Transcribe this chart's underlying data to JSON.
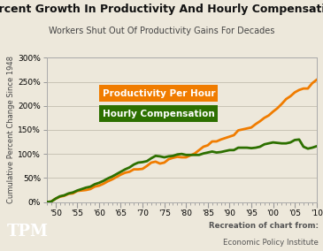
{
  "title": "Percent Growth In Productivity And Hourly Compensation",
  "subtitle": "Workers Shut Out Of Productivity Gains For Decades",
  "ylabel": "Cumulative Percent Change Since 1948",
  "background_color": "#ede8db",
  "plot_background": "#ede8db",
  "productivity_color": "#f07c00",
  "compensation_color": "#2d7000",
  "productivity_label": "Productivity Per Hour",
  "compensation_label": "Hourly Compensation",
  "tpm_bg": "#751c1c",
  "years": [
    1948,
    1949,
    1950,
    1951,
    1952,
    1953,
    1954,
    1955,
    1956,
    1957,
    1958,
    1959,
    1960,
    1961,
    1962,
    1963,
    1964,
    1965,
    1966,
    1967,
    1968,
    1969,
    1970,
    1971,
    1972,
    1973,
    1974,
    1975,
    1976,
    1977,
    1978,
    1979,
    1980,
    1981,
    1982,
    1983,
    1984,
    1985,
    1986,
    1987,
    1988,
    1989,
    1990,
    1991,
    1992,
    1993,
    1994,
    1995,
    1996,
    1997,
    1998,
    1999,
    2000,
    2001,
    2002,
    2003,
    2004,
    2005,
    2006,
    2007,
    2008,
    2009,
    2010
  ],
  "productivity": [
    0,
    1,
    7,
    11,
    13,
    17,
    18,
    23,
    24,
    25,
    27,
    32,
    34,
    38,
    43,
    47,
    52,
    57,
    61,
    63,
    68,
    68,
    69,
    75,
    82,
    84,
    80,
    82,
    89,
    92,
    94,
    93,
    93,
    97,
    101,
    108,
    115,
    118,
    126,
    126,
    130,
    133,
    136,
    139,
    149,
    151,
    153,
    155,
    162,
    168,
    175,
    180,
    188,
    195,
    204,
    214,
    220,
    228,
    233,
    236,
    236,
    247,
    254
  ],
  "compensation": [
    0,
    1,
    7,
    12,
    14,
    18,
    20,
    24,
    27,
    30,
    32,
    37,
    40,
    44,
    49,
    53,
    58,
    63,
    68,
    72,
    78,
    82,
    83,
    85,
    91,
    96,
    95,
    93,
    95,
    96,
    99,
    100,
    98,
    98,
    98,
    98,
    101,
    103,
    105,
    103,
    104,
    106,
    108,
    108,
    113,
    113,
    113,
    112,
    113,
    115,
    120,
    122,
    124,
    123,
    122,
    122,
    124,
    129,
    130,
    115,
    111,
    113,
    116
  ],
  "xlim": [
    1948,
    2010
  ],
  "ylim": [
    0,
    300
  ],
  "xticks": [
    1950,
    1955,
    1960,
    1965,
    1970,
    1975,
    1980,
    1985,
    1990,
    1995,
    2000,
    2005,
    2010
  ],
  "yticks": [
    0,
    50,
    100,
    150,
    200,
    250,
    300
  ],
  "grid_color": "#c8c3b5",
  "footer_bold": "Recreation of chart from:",
  "footer_normal": "Economic Policy Institute"
}
